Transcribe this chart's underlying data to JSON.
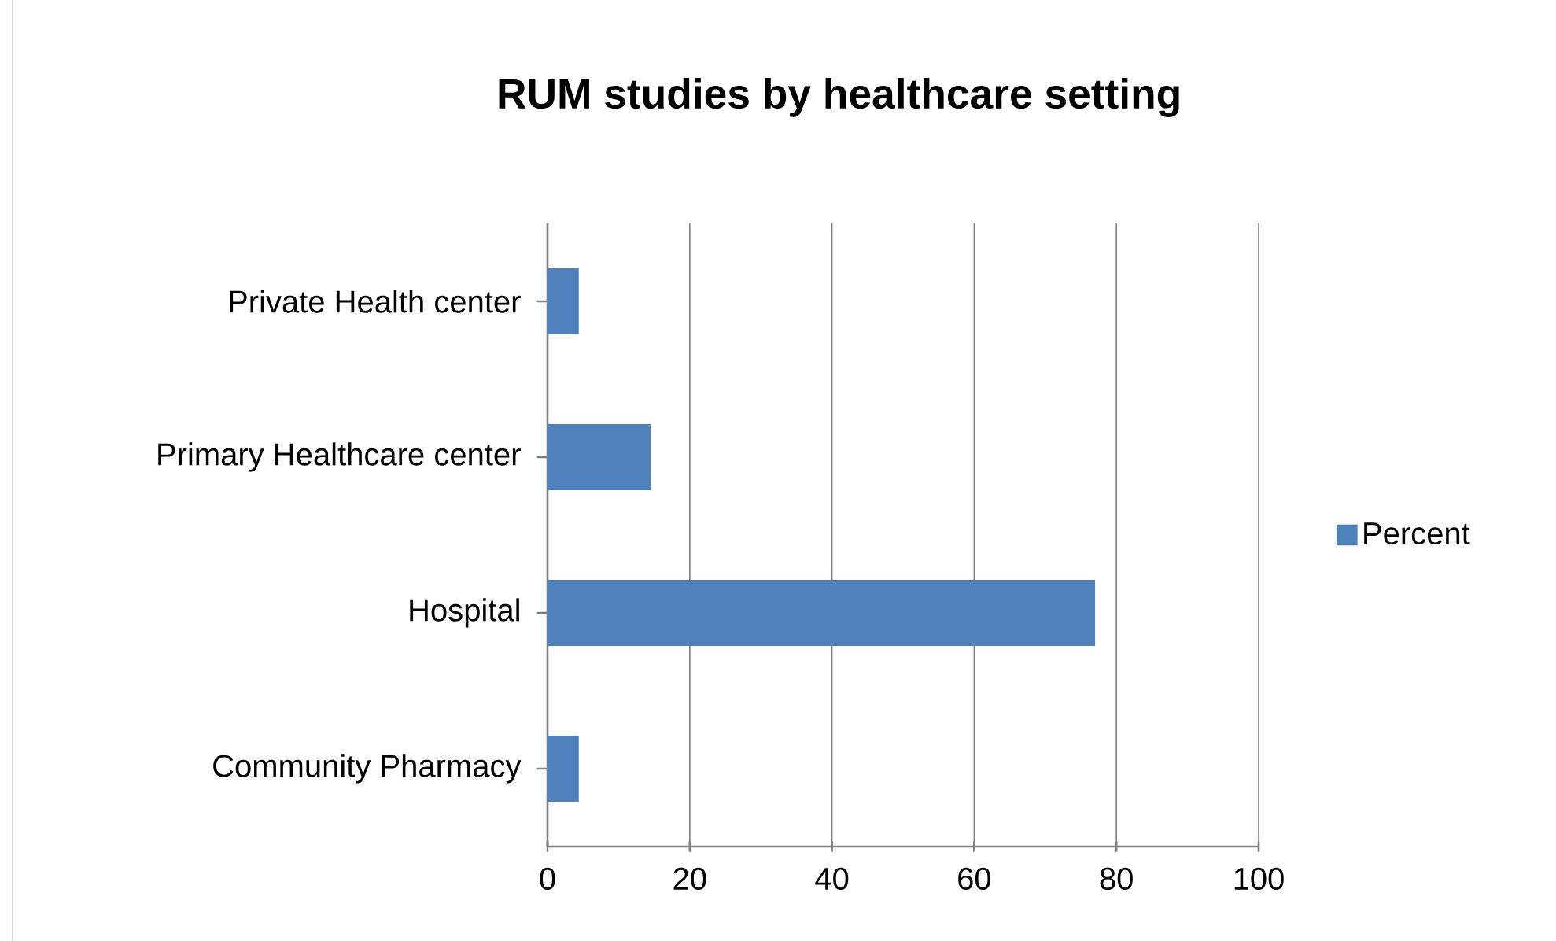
{
  "chart_data": {
    "type": "bar",
    "orientation": "horizontal",
    "title": "RUM studies by healthcare setting",
    "categories": [
      "Private Health center",
      "Primary Healthcare center",
      "Hospital",
      "Community Pharmacy"
    ],
    "series": [
      {
        "name": "Percent",
        "color": "#4f81bd",
        "values": [
          4.4,
          14.5,
          77,
          4.4
        ]
      }
    ],
    "xlim": [
      0,
      100
    ],
    "xticks": [
      0,
      20,
      40,
      60,
      80,
      100
    ],
    "grid": "x",
    "legend": "right"
  }
}
